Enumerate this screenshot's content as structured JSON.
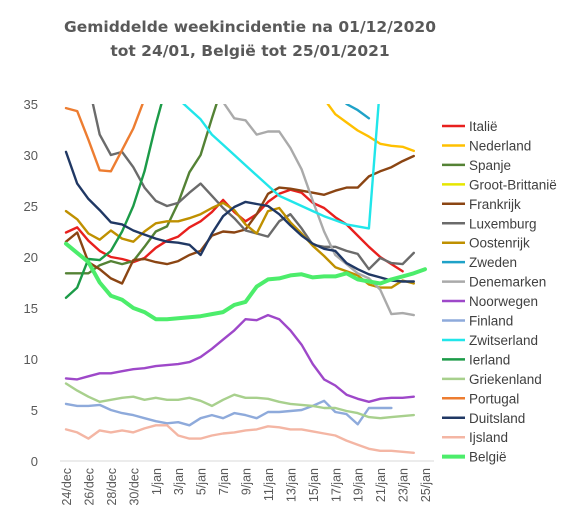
{
  "chart_data": {
    "type": "line",
    "title_lines": [
      "Gemiddelde weekincidentie  na 01/12/2020",
      "tot 24/01, België tot 25/01/2021"
    ],
    "xlabel": "",
    "ylabel": "",
    "x_tick_labels": [
      "24/dec",
      "26/dec",
      "28/dec",
      "30/dec",
      "1/jan",
      "3/jan",
      "5/jan",
      "7/jan",
      "9/jan",
      "11/jan",
      "13/jan",
      "15/jan",
      "17/jan",
      "19/jan",
      "21/jan",
      "23/jan",
      "25/jan"
    ],
    "x_index_range": [
      0,
      32
    ],
    "ylim": [
      0,
      35
    ],
    "y_ticks": [
      0,
      5,
      10,
      15,
      20,
      25,
      30,
      35
    ],
    "grid": false,
    "legend_position": "right",
    "series": [
      {
        "name": "Italië",
        "color": "#e8201e",
        "x": [
          0,
          1,
          2,
          3,
          4,
          5,
          6,
          7,
          8,
          9,
          10,
          11,
          12,
          13,
          14,
          15,
          16,
          17,
          18,
          19,
          20,
          21,
          22,
          23,
          24,
          25,
          26,
          27,
          28,
          29,
          30
        ],
        "values": [
          22.4,
          22.9,
          21.6,
          20.6,
          20.0,
          19.8,
          19.5,
          19.9,
          20.9,
          21.6,
          22.0,
          22.9,
          23.5,
          24.4,
          25.6,
          24.4,
          23.5,
          24.2,
          25.4,
          26.2,
          26.6,
          26.3,
          25.3,
          24.8,
          23.9,
          23.2,
          22.1,
          21.0,
          20.0,
          19.3,
          18.6
        ]
      },
      {
        "name": "Nederland",
        "color": "#ffc000",
        "x": [
          22,
          23,
          24,
          25,
          26,
          27,
          28,
          29,
          30,
          31
        ],
        "values": [
          37,
          35.5,
          34.0,
          33.2,
          32.4,
          31.8,
          31.1,
          30.9,
          30.8,
          30.4
        ]
      },
      {
        "name": "Spanje",
        "color": "#548235",
        "x": [
          0,
          1,
          2,
          3,
          4,
          5,
          6,
          7,
          8,
          9,
          10,
          11,
          12,
          13,
          14
        ],
        "values": [
          18.4,
          18.4,
          18.4,
          19.2,
          19.6,
          19.3,
          19.6,
          21.0,
          22.5,
          23.0,
          25.3,
          28.3,
          30.0,
          33.6,
          37
        ]
      },
      {
        "name": "Groot-Brittanië",
        "color": "#e6e600",
        "x": [],
        "values": []
      },
      {
        "name": "Frankrijk",
        "color": "#8b4513",
        "x": [
          0,
          1,
          2,
          3,
          4,
          5,
          6,
          7,
          8,
          9,
          10,
          11,
          12,
          13,
          14,
          15,
          16,
          17,
          18,
          19,
          20,
          21,
          22,
          23,
          24,
          25,
          26,
          27,
          28,
          29,
          30,
          31
        ],
        "values": [
          21.5,
          22.4,
          19.5,
          18.8,
          17.9,
          17.4,
          19.7,
          19.8,
          19.5,
          19.3,
          19.6,
          20.2,
          20.6,
          22.1,
          22.5,
          22.4,
          22.7,
          24.2,
          26.2,
          26.8,
          26.7,
          26.5,
          26.3,
          26.1,
          26.5,
          26.8,
          26.8,
          27.9,
          28.4,
          28.8,
          29.4,
          29.9
        ]
      },
      {
        "name": "Luxemburg",
        "color": "#6b6b6b",
        "x": [
          2,
          3,
          4,
          5,
          6,
          7,
          8,
          9,
          10,
          11,
          12,
          13,
          14,
          15,
          16,
          17,
          18,
          19,
          20,
          21,
          22,
          23,
          24,
          25,
          26,
          27,
          28,
          29,
          30,
          31
        ],
        "values": [
          37,
          32.0,
          30.0,
          30.3,
          28.8,
          26.8,
          25.5,
          25.0,
          25.3,
          26.3,
          27.2,
          26.0,
          24.8,
          23.8,
          22.6,
          22.3,
          22.0,
          23.5,
          24.2,
          22.8,
          21.2,
          21.0,
          21.0,
          20.6,
          20.3,
          18.8,
          19.9,
          19.4,
          19.3,
          20.4
        ]
      },
      {
        "name": "Oostenrijk",
        "color": "#bf9000",
        "x": [
          0,
          1,
          2,
          3,
          4,
          5,
          6,
          7,
          8,
          9,
          10,
          11,
          12,
          13,
          14,
          15,
          16,
          17,
          18,
          19,
          20,
          21,
          22,
          23,
          24,
          25,
          26,
          27,
          28,
          29,
          30,
          31
        ],
        "values": [
          24.5,
          23.7,
          22.3,
          21.7,
          22.6,
          21.8,
          21.5,
          22.5,
          23.3,
          23.5,
          23.5,
          23.8,
          24.2,
          24.8,
          25.3,
          24.6,
          23.2,
          22.3,
          24.5,
          24.8,
          23.4,
          22.3,
          21.1,
          20.1,
          19.0,
          18.6,
          18.2,
          17.3,
          17.0,
          17.0,
          17.7,
          17.4
        ]
      },
      {
        "name": "Zweden",
        "color": "#1fa2c8",
        "x": [
          25,
          26,
          27
        ],
        "values": [
          35.0,
          34.4,
          33.6
        ]
      },
      {
        "name": "Denemarken",
        "color": "#aaaaaa",
        "x": [
          14,
          15,
          16,
          17,
          18,
          19,
          20,
          21,
          22,
          23,
          24,
          25,
          26,
          27,
          28,
          29,
          30,
          31
        ],
        "values": [
          35.2,
          33.6,
          33.4,
          32.0,
          32.3,
          32.3,
          30.7,
          28.6,
          25.5,
          22.5,
          20.2,
          19.3,
          18.4,
          17.9,
          16.8,
          14.4,
          14.5,
          14.3
        ]
      },
      {
        "name": "Noorwegen",
        "color": "#9e48c9",
        "x": [
          0,
          1,
          2,
          3,
          4,
          5,
          6,
          7,
          8,
          9,
          10,
          11,
          12,
          13,
          14,
          15,
          16,
          17,
          18,
          19,
          20,
          21,
          22,
          23,
          24,
          25,
          26,
          27,
          28,
          29,
          30,
          31
        ],
        "values": [
          8.1,
          8.0,
          8.3,
          8.6,
          8.6,
          8.8,
          9.0,
          9.1,
          9.3,
          9.4,
          9.5,
          9.7,
          10.2,
          11.0,
          11.9,
          12.8,
          13.9,
          13.8,
          14.3,
          13.9,
          12.8,
          11.4,
          9.5,
          8.0,
          7.4,
          6.5,
          6.1,
          5.8,
          6.1,
          6.2,
          6.2,
          6.3
        ]
      },
      {
        "name": "Finland",
        "color": "#8eaadb",
        "x": [
          0,
          1,
          2,
          3,
          4,
          5,
          6,
          7,
          8,
          9,
          10,
          11,
          12,
          13,
          14,
          15,
          16,
          17,
          18,
          19,
          20,
          21,
          22,
          23,
          24,
          25,
          26,
          27,
          28,
          29
        ],
        "values": [
          5.6,
          5.4,
          5.4,
          5.5,
          5.0,
          4.7,
          4.5,
          4.2,
          3.9,
          3.7,
          3.8,
          3.5,
          4.2,
          4.5,
          4.2,
          4.7,
          4.5,
          4.2,
          4.8,
          4.8,
          4.9,
          5.0,
          5.4,
          5.9,
          4.8,
          4.6,
          3.6,
          5.2,
          5.2,
          5.2
        ]
      },
      {
        "name": "Zwitserland",
        "color": "#21e6ea",
        "x": [
          9,
          10,
          11,
          12,
          13,
          14,
          15,
          16,
          17,
          18,
          19,
          20,
          21,
          22,
          23,
          24,
          25,
          26,
          27,
          28,
          29,
          30,
          31
        ],
        "values": [
          36.5,
          35.5,
          34.5,
          33.5,
          32.0,
          31.0,
          30.0,
          29.0,
          28.0,
          27.0,
          26.0,
          25.5,
          25.0,
          24.5,
          24.0,
          23.6,
          23.2,
          23.0,
          22.8,
          37,
          37,
          37,
          37
        ]
      },
      {
        "name": "Ierland",
        "color": "#1c9b48",
        "x": [
          0,
          1,
          2,
          3,
          4,
          5,
          6,
          7,
          8,
          9
        ],
        "values": [
          16.0,
          17.0,
          19.8,
          19.7,
          20.6,
          22.5,
          25.0,
          28.4,
          33.0,
          37
        ]
      },
      {
        "name": "Griekenland",
        "color": "#a8d08d",
        "x": [
          0,
          1,
          2,
          3,
          4,
          5,
          6,
          7,
          8,
          9,
          10,
          11,
          12,
          13,
          14,
          15,
          16,
          17,
          18,
          19,
          20,
          21,
          22,
          23,
          24,
          25,
          26,
          27,
          28,
          29,
          30,
          31
        ],
        "values": [
          7.6,
          6.9,
          6.3,
          5.8,
          6.0,
          6.2,
          6.3,
          6.0,
          6.2,
          6.0,
          6.0,
          6.2,
          5.9,
          5.4,
          6.0,
          6.5,
          6.2,
          6.2,
          6.1,
          5.8,
          5.6,
          5.5,
          5.4,
          5.2,
          5.2,
          4.9,
          4.7,
          4.3,
          4.2,
          4.3,
          4.4,
          4.5
        ]
      },
      {
        "name": "Portugal",
        "color": "#ed7d31",
        "x": [
          0,
          1,
          2,
          3,
          4,
          5,
          6,
          7,
          8
        ],
        "values": [
          34.6,
          34.3,
          31.5,
          28.5,
          28.4,
          30.5,
          32.6,
          35.5,
          37
        ]
      },
      {
        "name": "Duitsland",
        "color": "#203864",
        "x": [
          0,
          1,
          2,
          3,
          4,
          5,
          6,
          7,
          8,
          9,
          10,
          11,
          12,
          13,
          14,
          15,
          16,
          17,
          18,
          19,
          20,
          21,
          22,
          23,
          24,
          25,
          26,
          27,
          28,
          29,
          30,
          31
        ],
        "values": [
          30.3,
          27.2,
          25.7,
          24.6,
          23.4,
          23.2,
          22.6,
          22.2,
          21.8,
          21.5,
          21.4,
          21.2,
          20.2,
          22.3,
          24.0,
          24.9,
          25.4,
          25.2,
          25.0,
          24.2,
          23.1,
          22.1,
          21.3,
          20.8,
          20.6,
          19.4,
          18.8,
          18.3,
          18.0,
          17.7,
          17.6,
          17.6
        ]
      },
      {
        "name": "Ijsland",
        "color": "#f4b6a4",
        "x": [
          0,
          1,
          2,
          3,
          4,
          5,
          6,
          7,
          8,
          9,
          10,
          11,
          12,
          13,
          14,
          15,
          16,
          17,
          18,
          19,
          20,
          21,
          22,
          23,
          24,
          25,
          26,
          27,
          28,
          29,
          30,
          31
        ],
        "values": [
          3.1,
          2.8,
          2.2,
          3.0,
          2.8,
          3.0,
          2.8,
          3.2,
          3.5,
          3.5,
          2.5,
          2.2,
          2.2,
          2.5,
          2.7,
          2.8,
          3.0,
          3.1,
          3.4,
          3.3,
          3.1,
          3.1,
          2.9,
          2.7,
          2.5,
          2.0,
          1.6,
          1.2,
          1.0,
          1.0,
          0.9,
          0.8
        ]
      },
      {
        "name": "België",
        "color": "#4ced6b",
        "x": [
          0,
          1,
          2,
          3,
          4,
          5,
          6,
          7,
          8,
          9,
          10,
          11,
          12,
          13,
          14,
          15,
          16,
          17,
          18,
          19,
          20,
          21,
          22,
          23,
          24,
          25,
          26,
          27,
          28,
          29,
          30,
          31,
          32
        ],
        "values": [
          21.3,
          20.4,
          19.5,
          17.5,
          16.2,
          15.8,
          15.0,
          14.6,
          13.9,
          13.9,
          14.0,
          14.1,
          14.2,
          14.4,
          14.6,
          15.3,
          15.6,
          17.1,
          17.8,
          17.9,
          18.2,
          18.3,
          18.0,
          18.1,
          18.1,
          18.4,
          17.8,
          17.6,
          17.4,
          17.8,
          18.1,
          18.4,
          18.8
        ]
      }
    ]
  }
}
